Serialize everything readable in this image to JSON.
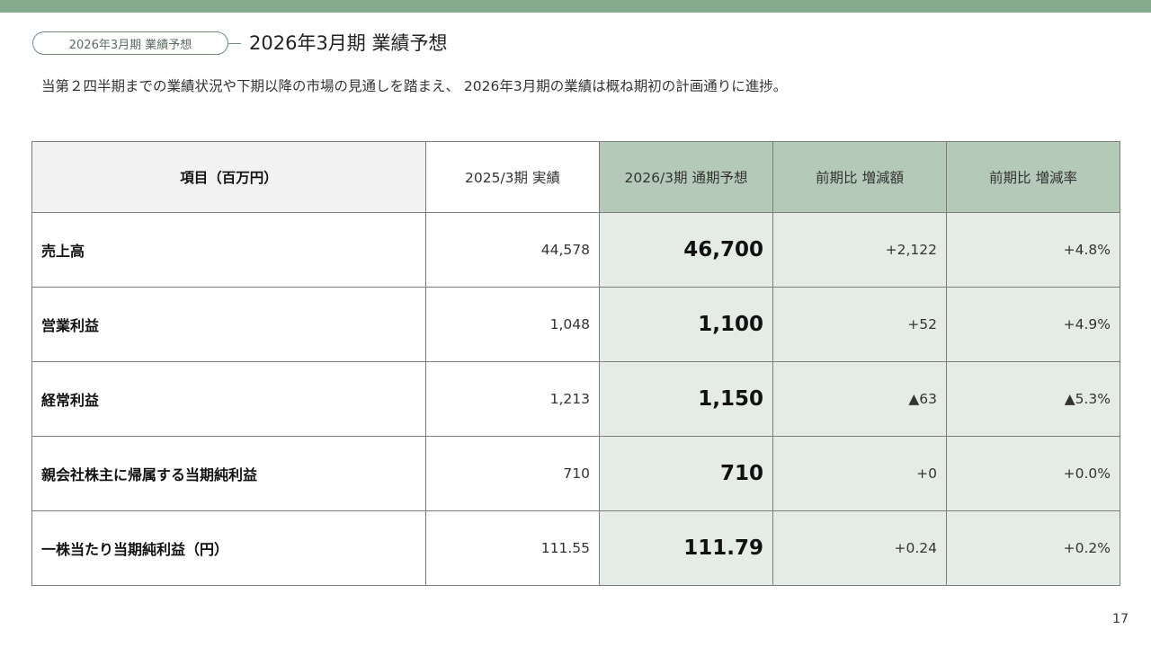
{
  "header": {
    "tag_label": "2026年3月期 業績予想",
    "title": "2026年3月期 業績予想",
    "lead": "当第２四半期までの業績状況や下期以降の市場の見通しを踏まえ、 2026年3月期の業績は概ね期初の計画通りに進捗。"
  },
  "table": {
    "columns": [
      "項目（百万円）",
      "2025/3期 実績",
      "2026/3期 通期予想",
      "前期比 増減額",
      "前期比 増減率"
    ],
    "rows": [
      [
        "売上高",
        "44,578",
        "46,700",
        "+2,122",
        "+4.8%"
      ],
      [
        "営業利益",
        "1,048",
        "1,100",
        "+52",
        "+4.9%"
      ],
      [
        "経常利益",
        "1,213",
        "1,150",
        "▲63",
        "▲5.3%"
      ],
      [
        "親会社株主に帰属する当期純利益",
        "710",
        "710",
        "+0",
        "+0.0%"
      ],
      [
        "一株当たり当期純利益（円）",
        "111.55",
        "111.79",
        "+0.24",
        "+0.2%"
      ]
    ]
  },
  "footer": {
    "page_number": "17"
  },
  "colors": {
    "accent_bar": "#84a98c",
    "header_green": "#b5c9b8",
    "cell_green": "#e5ece6",
    "header_gray": "#f2f2f2"
  }
}
